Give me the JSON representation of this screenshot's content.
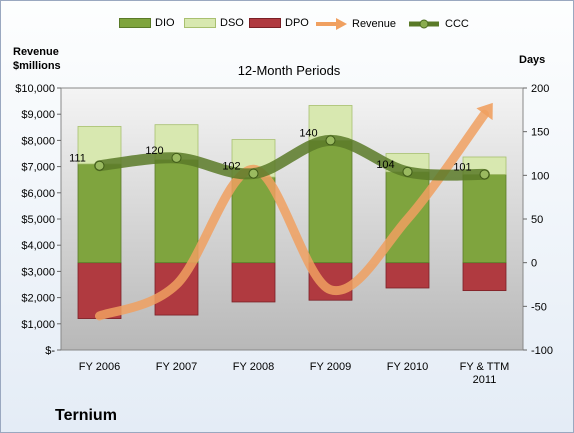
{
  "company": "Ternium",
  "chart_data": {
    "type": "bar",
    "title": "12-Month Periods",
    "left_axis_label": [
      "Revenue",
      "$millions"
    ],
    "right_axis_label": "Days",
    "categories": [
      [
        "FY 2006"
      ],
      [
        "FY 2007"
      ],
      [
        "FY 2008"
      ],
      [
        "FY 2009"
      ],
      [
        "FY 2010"
      ],
      [
        "FY & TTM",
        "2011"
      ]
    ],
    "left_ticks": [
      "$-",
      "$1,000",
      "$2,000",
      "$3,000",
      "$4,000",
      "$5,000",
      "$6,000",
      "$7,000",
      "$8,000",
      "$9,000",
      "$10,000"
    ],
    "right_ticks": [
      "-100",
      "-50",
      "0",
      "50",
      "100",
      "150",
      "200"
    ],
    "left_range": [
      0,
      10000
    ],
    "right_range": [
      -100,
      200
    ],
    "series": [
      {
        "name": "DIO",
        "color": "#7fa43e",
        "values": [
          113,
          118,
          98,
          140,
          104,
          101
        ]
      },
      {
        "name": "DSO",
        "color": "#d8e8b0",
        "values": [
          43,
          40,
          43,
          40,
          21,
          20
        ]
      },
      {
        "name": "DPO",
        "color": "#b03a40",
        "values": [
          -64,
          -60,
          -45,
          -43,
          -29,
          -32
        ]
      },
      {
        "name": "Revenue",
        "color": "#f0a060",
        "values": [
          1300,
          2500,
          6900,
          2300,
          5000,
          9000
        ]
      },
      {
        "name": "CCC",
        "color": "#5a7a28",
        "values": [
          111,
          120,
          102,
          140,
          104,
          101
        ]
      }
    ],
    "ccc_labels": [
      "111",
      "120",
      "102",
      "140",
      "104",
      "101"
    ]
  }
}
